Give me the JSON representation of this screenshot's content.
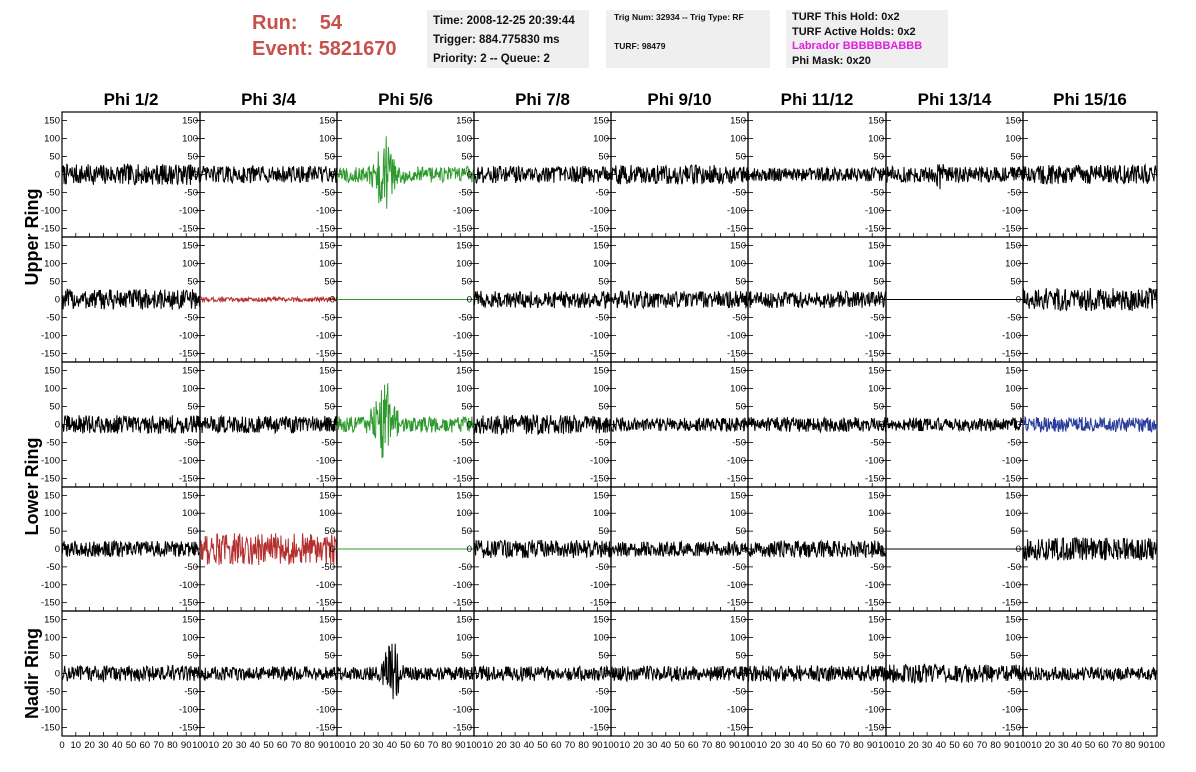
{
  "header": {
    "run_label": "Run:",
    "run_value": "54",
    "event_label": "Event:",
    "event_value": "5821670",
    "time": "Time: 2008-12-25 20:39:44",
    "trigger": "Trigger: 884.775830 ms",
    "priority": "Priority: 2 -- Queue: 2",
    "trig_num": "Trig Num: 32934 -- Trig Type: RF",
    "turf": "TURF: 98479",
    "turf_this_hold": "TURF This Hold: 0x2",
    "turf_active_holds": "TURF Active Holds: 0x2",
    "labrador": "Labrador BBBBBBABBB",
    "phi_mask": "Phi Mask: 0x20"
  },
  "colors": {
    "run_text": "#c8504a",
    "labrador": "#e020e0",
    "green": "#2e9a2e",
    "red": "#b52f2f",
    "blue": "#2b3d9a",
    "black": "#000000"
  },
  "chart_data": {
    "type": "line",
    "columns": [
      "Phi 1/2",
      "Phi 3/4",
      "Phi 5/6",
      "Phi 7/8",
      "Phi 9/10",
      "Phi 11/12",
      "Phi 13/14",
      "Phi 15/16"
    ],
    "row_groups": [
      "Upper Ring",
      "Lower Ring",
      "Nadir Ring"
    ],
    "rows": 5,
    "xlim": [
      0,
      100
    ],
    "ylim": [
      -165,
      165
    ],
    "x_ticks": [
      0,
      10,
      20,
      30,
      40,
      50,
      60,
      70,
      80,
      90,
      100
    ],
    "x_tick_labels": [
      "0",
      "10",
      "20",
      "30",
      "40",
      "50",
      "60",
      "70",
      "80",
      "90",
      "100"
    ],
    "y_ticks": [
      -150,
      -100,
      -50,
      0,
      50,
      100,
      150
    ],
    "y_tick_labels": [
      "-150",
      "-100",
      "-50",
      "0",
      "50",
      "100",
      "150"
    ],
    "samples_per_trace": 260,
    "noise_amplitude": 16,
    "panels": [
      [
        {
          "color": "black",
          "amp": 18
        },
        {
          "color": "black",
          "amp": 15
        },
        {
          "color": "green",
          "amp": 14,
          "pulse_center": 35,
          "pulse_width": 8,
          "pulse_amp": 85
        },
        {
          "color": "black",
          "amp": 15
        },
        {
          "color": "black",
          "amp": 17
        },
        {
          "color": "black",
          "amp": 12
        },
        {
          "color": "black",
          "amp": 14,
          "pulse_center": 40,
          "pulse_width": 3,
          "pulse_amp": 25
        },
        {
          "color": "black",
          "amp": 17
        }
      ],
      [
        {
          "color": "black",
          "amp": 18
        },
        {
          "color": "red",
          "amp": 4
        },
        {
          "color": "green",
          "amp": 0
        },
        {
          "color": "black",
          "amp": 15
        },
        {
          "color": "black",
          "amp": 15
        },
        {
          "color": "black",
          "amp": 15
        },
        {
          "color": "black",
          "amp": 0
        },
        {
          "color": "black",
          "amp": 20
        }
      ],
      [
        {
          "color": "black",
          "amp": 16
        },
        {
          "color": "black",
          "amp": 15
        },
        {
          "color": "green",
          "amp": 14,
          "pulse_center": 35,
          "pulse_width": 8,
          "pulse_amp": 90
        },
        {
          "color": "black",
          "amp": 17
        },
        {
          "color": "black",
          "amp": 12
        },
        {
          "color": "black",
          "amp": 13
        },
        {
          "color": "black",
          "amp": 12
        },
        {
          "color": "blue",
          "amp": 13
        }
      ],
      [
        {
          "color": "black",
          "amp": 14
        },
        {
          "color": "red",
          "amp": 28
        },
        {
          "color": "green",
          "amp": 0
        },
        {
          "color": "black",
          "amp": 16
        },
        {
          "color": "black",
          "amp": 13
        },
        {
          "color": "black",
          "amp": 15
        },
        {
          "color": "black",
          "amp": 0
        },
        {
          "color": "black",
          "amp": 20
        }
      ],
      [
        {
          "color": "black",
          "amp": 14
        },
        {
          "color": "black",
          "amp": 12
        },
        {
          "color": "black",
          "amp": 12,
          "pulse_center": 40,
          "pulse_width": 6,
          "pulse_amp": 75
        },
        {
          "color": "black",
          "amp": 13
        },
        {
          "color": "black",
          "amp": 13
        },
        {
          "color": "black",
          "amp": 14
        },
        {
          "color": "black",
          "amp": 16
        },
        {
          "color": "black",
          "amp": 12
        }
      ]
    ]
  }
}
